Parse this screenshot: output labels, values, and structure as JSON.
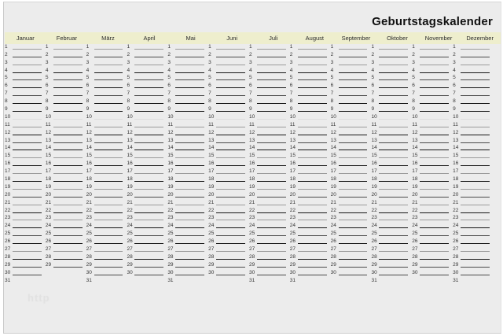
{
  "title": "Geburtstagskalender",
  "watermark_text": "http",
  "colors": {
    "page_background": "#ececec",
    "header_band": "#eeeecd",
    "title_color": "#111111",
    "line_dark": "#161616",
    "line_medium": "#4a4a4a",
    "line_light": "#9b9b9b",
    "line_faint": "#dcdcdc"
  },
  "calendar": {
    "months": [
      {
        "name": "Januar",
        "days": 31
      },
      {
        "name": "Februar",
        "days": 29
      },
      {
        "name": "März",
        "days": 31
      },
      {
        "name": "April",
        "days": 30
      },
      {
        "name": "Mai",
        "days": 31
      },
      {
        "name": "Juni",
        "days": 30
      },
      {
        "name": "Juli",
        "days": 31
      },
      {
        "name": "August",
        "days": 31
      },
      {
        "name": "September",
        "days": 30
      },
      {
        "name": "Oktober",
        "days": 31
      },
      {
        "name": "November",
        "days": 30
      },
      {
        "name": "Dezember",
        "days": 31
      }
    ],
    "max_day": 31,
    "day_without_line": 31,
    "row_line_weights": [
      1,
      2,
      1,
      3,
      2,
      3,
      2,
      3,
      3,
      0,
      1,
      3,
      2,
      3,
      1,
      3,
      1,
      3,
      1,
      2,
      1,
      3,
      1,
      3,
      2,
      3,
      1,
      3,
      2,
      2,
      0
    ]
  }
}
